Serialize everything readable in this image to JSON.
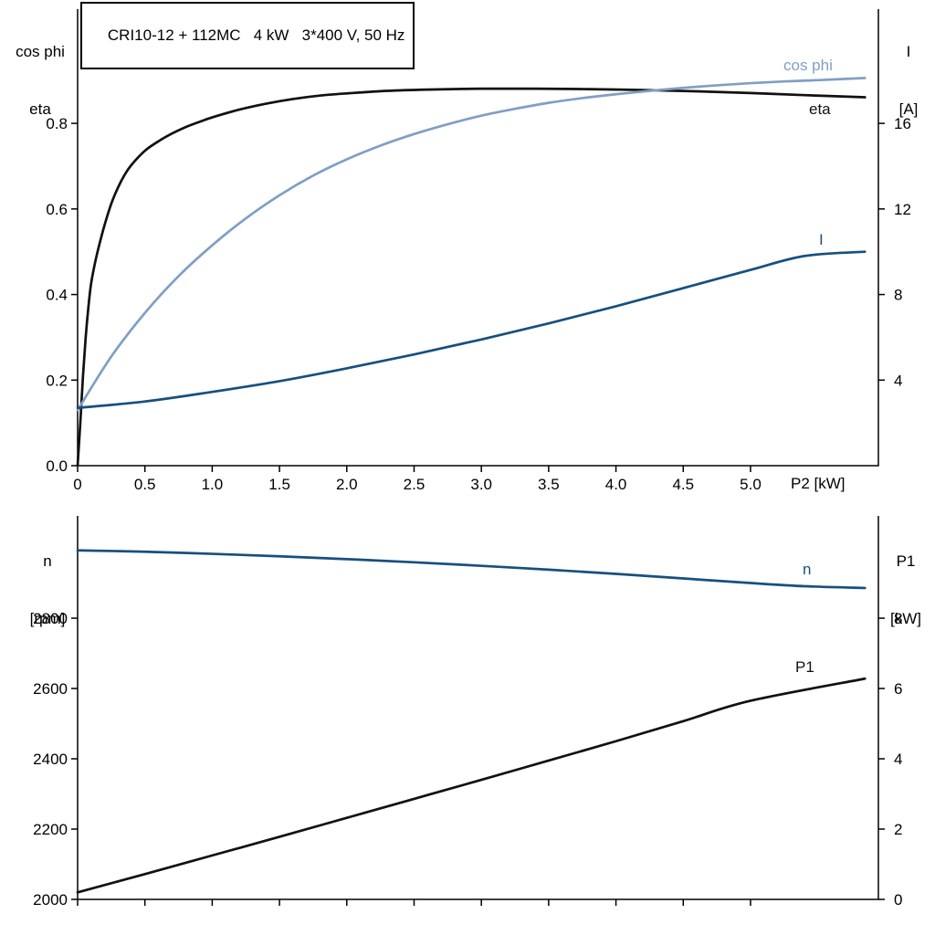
{
  "title_box": {
    "text": "CRI10-12 + 112MC   4 kW   3*400 V, 50 Hz"
  },
  "colors": {
    "black": "#111111",
    "light_blue": "#7f9fc4",
    "dark_blue": "#16507f",
    "axis": "#000000"
  },
  "axis_labels": {
    "top_left": {
      "line1": "cos phi",
      "line2": "eta"
    },
    "top_right": {
      "line1": "I",
      "line2": "[A]"
    },
    "bottom_left": {
      "line1": "n",
      "line2": "[rpm]"
    },
    "bottom_right": {
      "line1": "P1",
      "line2": "[kW]"
    }
  },
  "chart_data": [
    {
      "type": "line",
      "panel": "top",
      "title": "CRI10-12 + 112MC   4 kW   3*400 V, 50 Hz",
      "x_axis": {
        "title": "P2 [kW]",
        "range": [
          0,
          5.95
        ],
        "tick_values": [
          0,
          0.5,
          1,
          1.5,
          2,
          2.5,
          3,
          3.5,
          4,
          4.5,
          5
        ],
        "tick_labels": [
          "0",
          "0.5",
          "1.0",
          "1.5",
          "2.0",
          "2.5",
          "3.0",
          "3.5",
          "4.0",
          "4.5",
          "5.0"
        ]
      },
      "left_axis": {
        "name": "cos phi / eta",
        "range": [
          0,
          1.067
        ],
        "tick_values": [
          0,
          0.2,
          0.4,
          0.6,
          0.8
        ],
        "tick_labels": [
          "0.0",
          "0.2",
          "0.4",
          "0.6",
          "0.8"
        ]
      },
      "right_axis": {
        "name": "I [A]",
        "range": [
          0,
          21.34
        ],
        "tick_values": [
          4,
          8,
          12,
          16
        ],
        "tick_labels": [
          "4",
          "8",
          "12",
          "16"
        ]
      },
      "series": [
        {
          "name": "eta",
          "axis": "left",
          "color": "black",
          "points": [
            [
              0,
              0
            ],
            [
              0.02,
              0.1
            ],
            [
              0.04,
              0.21
            ],
            [
              0.06,
              0.3
            ],
            [
              0.08,
              0.37
            ],
            [
              0.1,
              0.425
            ],
            [
              0.13,
              0.475
            ],
            [
              0.16,
              0.515
            ],
            [
              0.2,
              0.562
            ],
            [
              0.25,
              0.612
            ],
            [
              0.3,
              0.65
            ],
            [
              0.35,
              0.68
            ],
            [
              0.4,
              0.703
            ],
            [
              0.5,
              0.736
            ],
            [
              0.6,
              0.758
            ],
            [
              0.7,
              0.776
            ],
            [
              0.8,
              0.791
            ],
            [
              0.9,
              0.803
            ],
            [
              1.0,
              0.814
            ],
            [
              1.2,
              0.832
            ],
            [
              1.4,
              0.846
            ],
            [
              1.6,
              0.857
            ],
            [
              1.8,
              0.865
            ],
            [
              2.0,
              0.87
            ],
            [
              2.3,
              0.876
            ],
            [
              2.6,
              0.879
            ],
            [
              3.0,
              0.881
            ],
            [
              3.4,
              0.881
            ],
            [
              3.8,
              0.88
            ],
            [
              4.2,
              0.878
            ],
            [
              4.6,
              0.875
            ],
            [
              5.0,
              0.871
            ],
            [
              5.4,
              0.866
            ],
            [
              5.85,
              0.861
            ]
          ]
        },
        {
          "name": "cos phi",
          "axis": "left",
          "color": "light_blue",
          "points": [
            [
              0,
              0.13
            ],
            [
              0.25,
              0.255
            ],
            [
              0.5,
              0.357
            ],
            [
              0.75,
              0.443
            ],
            [
              1.0,
              0.515
            ],
            [
              1.25,
              0.578
            ],
            [
              1.5,
              0.632
            ],
            [
              1.75,
              0.678
            ],
            [
              2.0,
              0.716
            ],
            [
              2.25,
              0.748
            ],
            [
              2.5,
              0.775
            ],
            [
              2.75,
              0.798
            ],
            [
              3.0,
              0.818
            ],
            [
              3.25,
              0.834
            ],
            [
              3.5,
              0.848
            ],
            [
              3.75,
              0.859
            ],
            [
              4.0,
              0.868
            ],
            [
              4.25,
              0.876
            ],
            [
              4.5,
              0.883
            ],
            [
              4.75,
              0.889
            ],
            [
              5.0,
              0.894
            ],
            [
              5.25,
              0.898
            ],
            [
              5.5,
              0.901
            ],
            [
              5.85,
              0.906
            ]
          ]
        },
        {
          "name": "I",
          "axis": "right",
          "color": "dark_blue",
          "points": [
            [
              0,
              2.7
            ],
            [
              0.5,
              3.0
            ],
            [
              1.0,
              3.45
            ],
            [
              1.5,
              3.95
            ],
            [
              2.0,
              4.55
            ],
            [
              2.5,
              5.2
            ],
            [
              3.0,
              5.9
            ],
            [
              3.5,
              6.65
            ],
            [
              4.0,
              7.45
            ],
            [
              4.5,
              8.3
            ],
            [
              5.0,
              9.15
            ],
            [
              5.4,
              9.8
            ],
            [
              5.85,
              10.0
            ]
          ]
        }
      ]
    },
    {
      "type": "line",
      "panel": "bottom",
      "x_axis": {
        "title": "",
        "range": [
          0,
          5.95
        ],
        "tick_values": [
          0,
          0.5,
          1,
          1.5,
          2,
          2.5,
          3,
          3.5,
          4,
          4.5,
          5
        ],
        "tick_labels": []
      },
      "left_axis": {
        "name": "n [rpm]",
        "range": [
          2000,
          3091
        ],
        "tick_values": [
          2000,
          2200,
          2400,
          2600,
          2800
        ],
        "tick_labels": [
          "2000",
          "2200",
          "2400",
          "2600",
          "2800"
        ]
      },
      "right_axis": {
        "name": "P1 [kW]",
        "range": [
          0,
          10.91
        ],
        "tick_values": [
          0,
          2,
          4,
          6,
          8
        ],
        "tick_labels": [
          "0",
          "2",
          "4",
          "6",
          "8"
        ]
      },
      "series": [
        {
          "name": "n",
          "axis": "left",
          "color": "dark_blue",
          "points": [
            [
              0,
              2993
            ],
            [
              0.5,
              2989
            ],
            [
              1.0,
              2983
            ],
            [
              1.5,
              2976
            ],
            [
              2.0,
              2968
            ],
            [
              2.5,
              2959
            ],
            [
              3.0,
              2949
            ],
            [
              3.5,
              2938
            ],
            [
              4.0,
              2926
            ],
            [
              4.5,
              2913
            ],
            [
              5.0,
              2900
            ],
            [
              5.4,
              2891
            ],
            [
              5.85,
              2886
            ]
          ]
        },
        {
          "name": "P1",
          "axis": "right",
          "color": "black",
          "points": [
            [
              0,
              0.2
            ],
            [
              0.5,
              0.72
            ],
            [
              1.0,
              1.25
            ],
            [
              1.5,
              1.78
            ],
            [
              2.0,
              2.32
            ],
            [
              2.5,
              2.86
            ],
            [
              3.0,
              3.4
            ],
            [
              3.5,
              3.95
            ],
            [
              4.0,
              4.5
            ],
            [
              4.5,
              5.07
            ],
            [
              5.0,
              5.65
            ],
            [
              5.85,
              6.28
            ]
          ]
        }
      ]
    }
  ]
}
